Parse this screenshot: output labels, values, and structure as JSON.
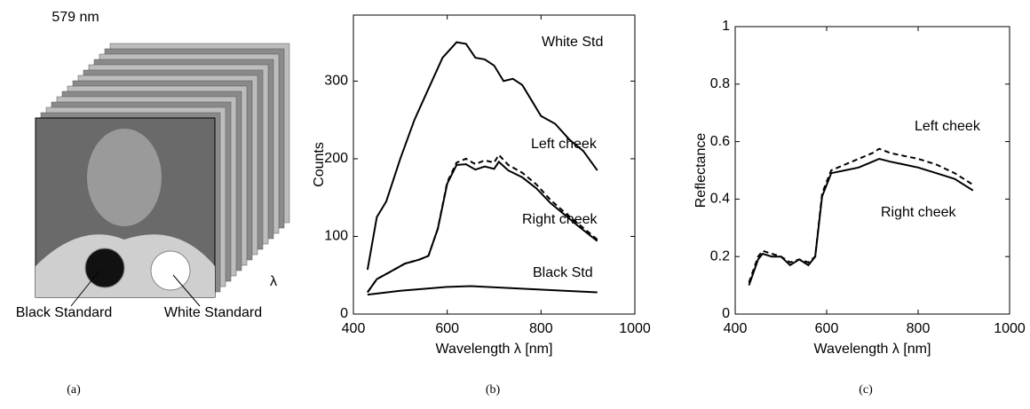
{
  "image_panel": {
    "title": "579 nm",
    "black_label": "Black Standard",
    "white_label": "White Standard",
    "axis_symbol": "λ",
    "caption": "(a)"
  },
  "chart_data": [
    {
      "type": "line",
      "caption": "(b)",
      "xlabel": "Wavelength λ [nm]",
      "ylabel": "Counts",
      "xlim": [
        400,
        1000
      ],
      "xticks": [
        400,
        600,
        800,
        1000
      ],
      "ylim": [
        0,
        385
      ],
      "yticks": [
        0,
        100,
        200,
        300
      ],
      "color": "#000000",
      "series": [
        {
          "name": "White Std",
          "dash": false,
          "x": [
            430,
            450,
            470,
            500,
            530,
            560,
            590,
            620,
            640,
            660,
            680,
            700,
            720,
            740,
            760,
            780,
            800,
            830,
            860,
            890,
            920
          ],
          "values": [
            57,
            125,
            145,
            200,
            250,
            290,
            330,
            350,
            348,
            330,
            328,
            320,
            300,
            303,
            295,
            275,
            255,
            245,
            225,
            210,
            185
          ]
        },
        {
          "name": "Left cheek",
          "dash": true,
          "x": [
            430,
            450,
            480,
            510,
            540,
            560,
            580,
            600,
            620,
            640,
            660,
            680,
            700,
            710,
            730,
            760,
            790,
            820,
            850,
            880,
            920
          ],
          "values": [
            28,
            45,
            55,
            65,
            70,
            75,
            110,
            170,
            195,
            200,
            193,
            198,
            195,
            205,
            192,
            182,
            167,
            147,
            131,
            116,
            96
          ]
        },
        {
          "name": "Right cheek",
          "dash": false,
          "x": [
            430,
            450,
            480,
            510,
            540,
            560,
            580,
            600,
            620,
            640,
            660,
            680,
            700,
            710,
            730,
            760,
            790,
            820,
            850,
            880,
            920
          ],
          "values": [
            28,
            45,
            55,
            65,
            70,
            75,
            110,
            168,
            192,
            193,
            186,
            190,
            187,
            196,
            185,
            176,
            162,
            143,
            128,
            113,
            94
          ]
        },
        {
          "name": "Black Std",
          "dash": false,
          "x": [
            430,
            500,
            600,
            650,
            750,
            850,
            920
          ],
          "values": [
            25,
            30,
            35,
            36,
            33,
            30,
            28
          ]
        }
      ]
    },
    {
      "type": "line",
      "caption": "(c)",
      "xlabel": "Wavelength λ [nm]",
      "ylabel": "Reflectance",
      "xlim": [
        400,
        1000
      ],
      "xticks": [
        400,
        600,
        800,
        1000
      ],
      "ylim": [
        0,
        1
      ],
      "yticks": [
        0,
        0.2,
        0.4,
        0.6,
        0.8,
        1
      ],
      "color": "#000000",
      "series": [
        {
          "name": "Left cheek",
          "dash": true,
          "x": [
            430,
            450,
            460,
            480,
            500,
            520,
            540,
            560,
            575,
            590,
            610,
            640,
            670,
            700,
            715,
            740,
            770,
            800,
            840,
            880,
            920
          ],
          "values": [
            0.11,
            0.2,
            0.22,
            0.21,
            0.2,
            0.18,
            0.19,
            0.18,
            0.2,
            0.42,
            0.5,
            0.52,
            0.54,
            0.56,
            0.575,
            0.56,
            0.55,
            0.54,
            0.52,
            0.49,
            0.45
          ]
        },
        {
          "name": "Right cheek",
          "dash": false,
          "x": [
            430,
            450,
            460,
            480,
            500,
            520,
            540,
            560,
            575,
            590,
            610,
            640,
            670,
            700,
            715,
            740,
            770,
            800,
            840,
            880,
            920
          ],
          "values": [
            0.1,
            0.19,
            0.21,
            0.2,
            0.2,
            0.17,
            0.19,
            0.17,
            0.2,
            0.41,
            0.49,
            0.5,
            0.51,
            0.53,
            0.54,
            0.53,
            0.52,
            0.51,
            0.49,
            0.47,
            0.43
          ]
        }
      ]
    }
  ]
}
